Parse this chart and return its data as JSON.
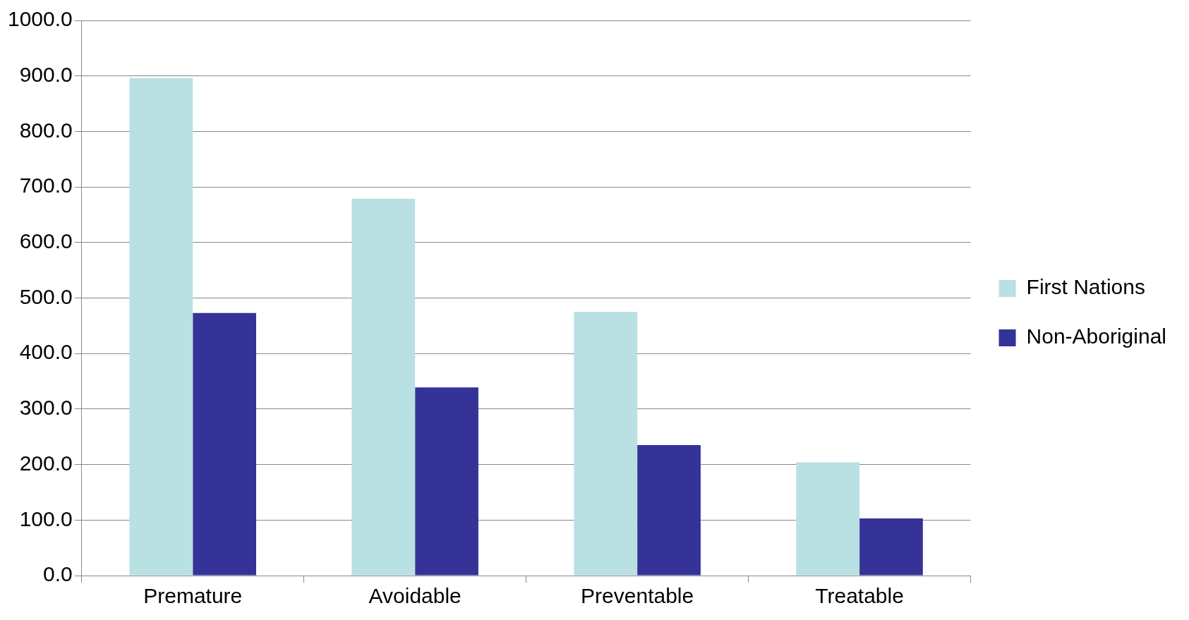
{
  "chart_data": {
    "type": "bar",
    "categories": [
      "Premature",
      "Avoidable",
      "Preventable",
      "Treatable"
    ],
    "series": [
      {
        "name": "First Nations",
        "color": "#b9e0e3",
        "values": [
          896,
          679,
          475,
          204
        ]
      },
      {
        "name": "Non-Aboriginal",
        "color": "#353397",
        "values": [
          473,
          339,
          235,
          103
        ]
      }
    ],
    "ylim": [
      0,
      1000
    ],
    "yticks": [
      {
        "value": 0,
        "label": "0.0"
      },
      {
        "value": 100,
        "label": "100.0"
      },
      {
        "value": 200,
        "label": "200.0"
      },
      {
        "value": 300,
        "label": "300.0"
      },
      {
        "value": 400,
        "label": "400.0"
      },
      {
        "value": 500,
        "label": "500.0"
      },
      {
        "value": 600,
        "label": "600.0"
      },
      {
        "value": 700,
        "label": "700.0"
      },
      {
        "value": 800,
        "label": "800.0"
      },
      {
        "value": 900,
        "label": "900.0"
      },
      {
        "value": 1000,
        "label": "1000.0"
      }
    ],
    "grid": "y",
    "legend": "right"
  }
}
